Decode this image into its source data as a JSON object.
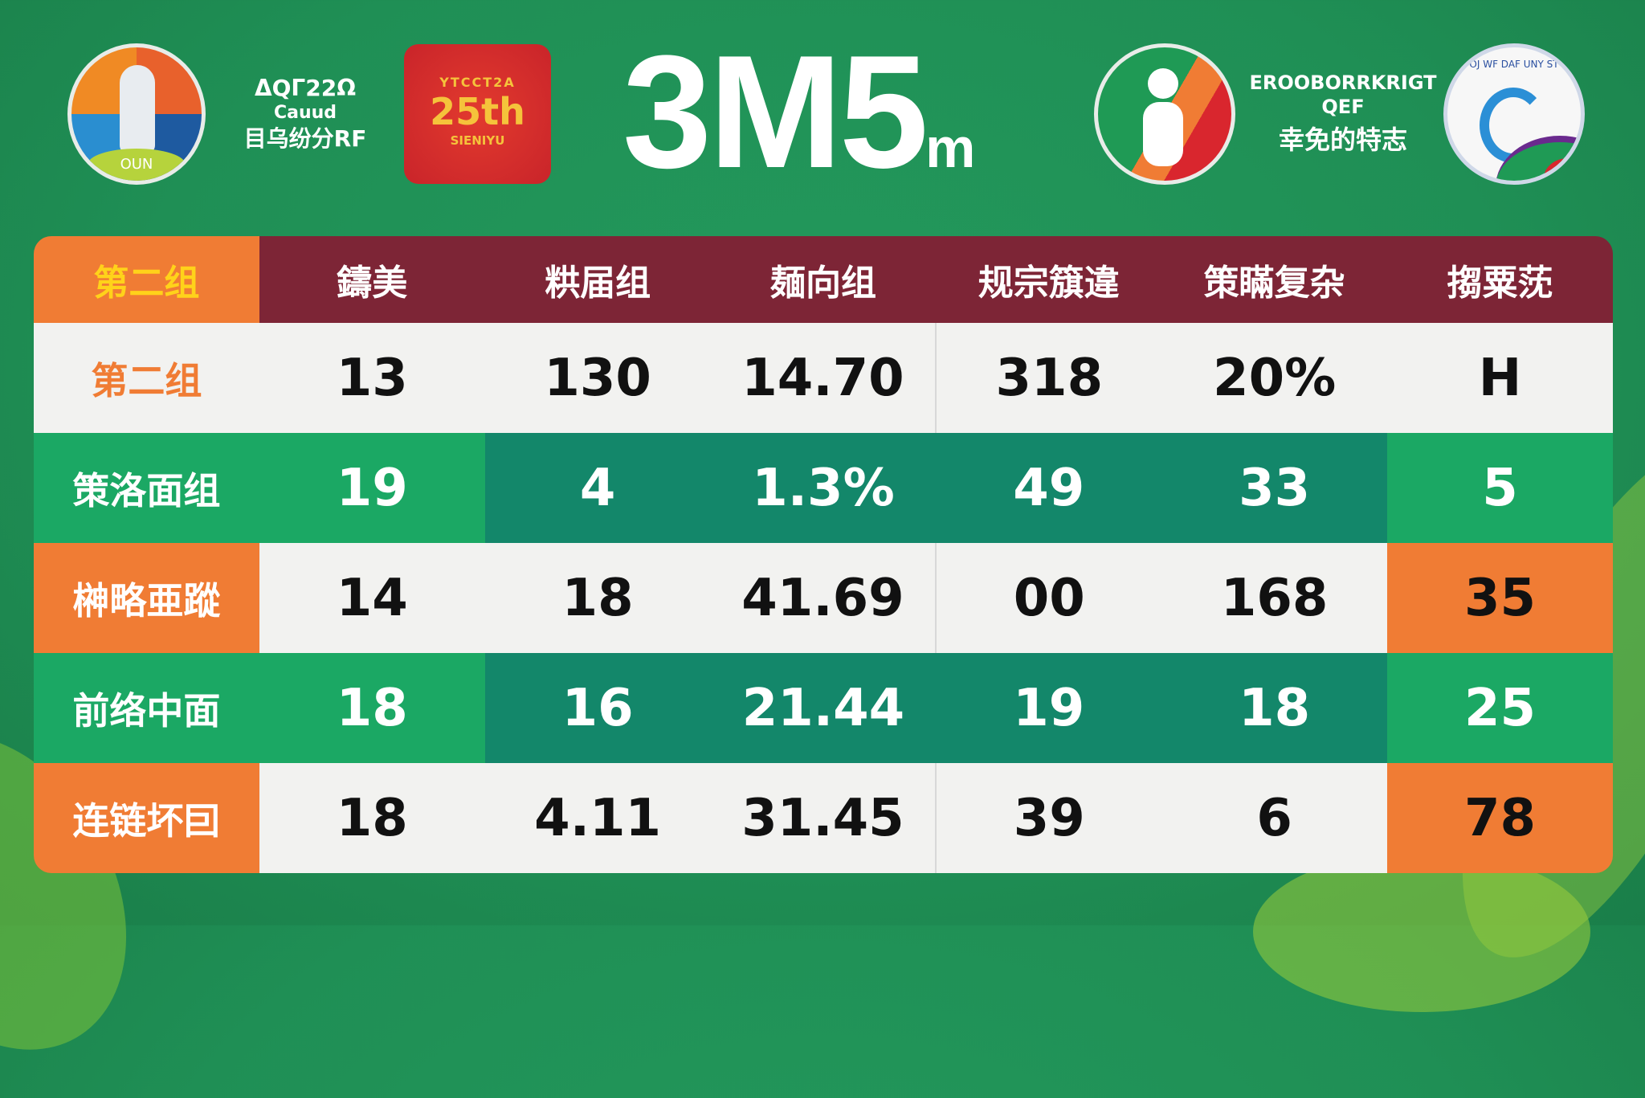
{
  "header": {
    "left_logo_text": "OUN",
    "left_text_lines": [
      "ΔQΓ22Ω",
      "Cauud",
      "目乌纷分RF"
    ],
    "badge": {
      "top_text": "YTCCT2A",
      "number": "25th",
      "bottom_text": "SIENIYU"
    },
    "title": "3M5",
    "title_suffix": "m",
    "right_text_lines": [
      "EROOBORRKRIGT",
      "QEF",
      "幸免的特志"
    ],
    "right_logo_text": "OJ WF DAF UNY ST"
  },
  "table": {
    "headers": [
      "第二组",
      "鑄美",
      "粠届组",
      "麺向组",
      "规宗簱違",
      "策瞞复杂",
      "搊粟莐"
    ],
    "rows": [
      {
        "label": "第二组",
        "values": [
          "13",
          "130",
          "14.70",
          "318",
          "20%",
          "H"
        ]
      },
      {
        "label": "策洛面组",
        "values": [
          "19",
          "4",
          "1.3%",
          "49",
          "33",
          "5"
        ]
      },
      {
        "label": "榊略亜蹤",
        "values": [
          "14",
          "18",
          "41.69",
          "00",
          "168",
          "35"
        ]
      },
      {
        "label": "前络中面",
        "values": [
          "18",
          "16",
          "21.44",
          "19",
          "18",
          "25"
        ]
      },
      {
        "label": "连链坏囙",
        "values": [
          "18",
          "4.11",
          "31.45",
          "39",
          "6",
          "78"
        ]
      }
    ]
  },
  "colors": {
    "background": "#1f8f55",
    "header_row": "#7d2536",
    "orange": "#f07c34",
    "light_green": "#1ba864",
    "dark_green": "#13876a",
    "yellow": "#ffd21a"
  }
}
